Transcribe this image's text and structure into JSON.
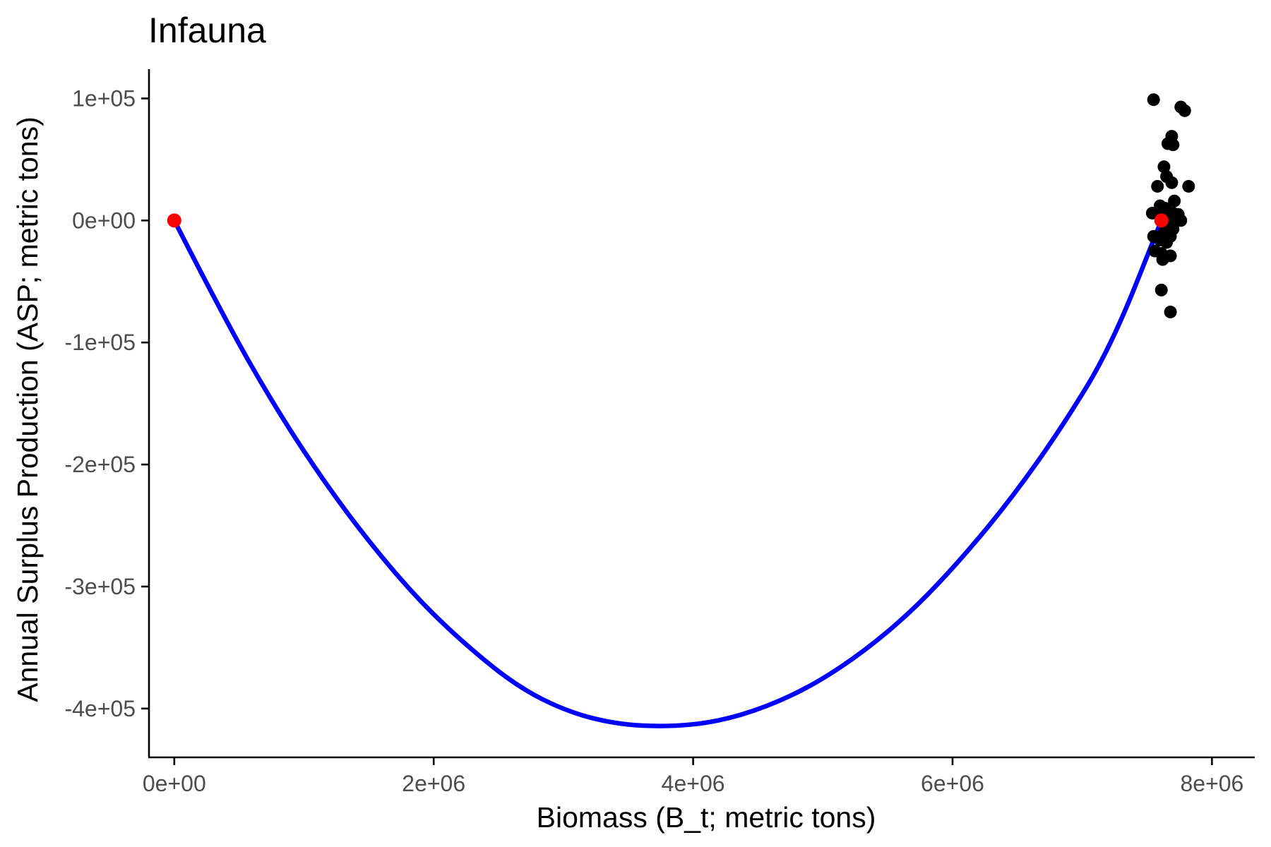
{
  "chart_data": {
    "type": "scatter",
    "title": "Infauna",
    "xlabel": "Biomass (B_t; metric tons)",
    "ylabel": "Annual Surplus Production (ASP; metric tons)",
    "xlim": [
      -195000,
      8330000
    ],
    "ylim": [
      -440000,
      124000
    ],
    "x_ticks": [
      0,
      2000000,
      4000000,
      6000000,
      8000000
    ],
    "x_tick_labels": [
      "0e+00",
      "2e+06",
      "4e+06",
      "6e+06",
      "8e+06"
    ],
    "y_ticks": [
      100000,
      0,
      -100000,
      -200000,
      -300000,
      -400000
    ],
    "y_tick_labels": [
      "1e+05",
      "0e+00",
      "-1e+05",
      "-2e+05",
      "-3e+05",
      "-4e+05"
    ],
    "grid": false,
    "legend": "none",
    "colors": {
      "observed": "#000000",
      "curve": "#0000ff",
      "reference": "#ff0000"
    },
    "series": [
      {
        "kind": "line",
        "color": "#0000ff",
        "points": [
          [
            0,
            0
          ],
          [
            380000,
            -79000
          ],
          [
            760000,
            -150000
          ],
          [
            1140000,
            -212000
          ],
          [
            1520000,
            -266000
          ],
          [
            1900000,
            -313000
          ],
          [
            2280000,
            -351000
          ],
          [
            2660000,
            -383000
          ],
          [
            3040000,
            -403000
          ],
          [
            3420000,
            -413000
          ],
          [
            3805000,
            -415000
          ],
          [
            4180000,
            -411000
          ],
          [
            4560000,
            -399000
          ],
          [
            4940000,
            -380000
          ],
          [
            5320000,
            -353000
          ],
          [
            5700000,
            -319000
          ],
          [
            6080000,
            -276000
          ],
          [
            6460000,
            -227000
          ],
          [
            6840000,
            -170000
          ],
          [
            7220000,
            -104000
          ],
          [
            7610000,
            0
          ]
        ]
      },
      {
        "kind": "points",
        "color": "#000000",
        "points": [
          [
            7550000,
            99000
          ],
          [
            7760000,
            93000
          ],
          [
            7790000,
            90000
          ],
          [
            7690000,
            69000
          ],
          [
            7660000,
            63000
          ],
          [
            7700000,
            62000
          ],
          [
            7630000,
            44000
          ],
          [
            7650000,
            36000
          ],
          [
            7690000,
            31000
          ],
          [
            7820000,
            28000
          ],
          [
            7580000,
            28000
          ],
          [
            7710000,
            16000
          ],
          [
            7600000,
            12000
          ],
          [
            7640000,
            10000
          ],
          [
            7540000,
            6000
          ],
          [
            7700000,
            6000
          ],
          [
            7740000,
            5000
          ],
          [
            7620000,
            3000
          ],
          [
            7680000,
            2000
          ],
          [
            7760000,
            0
          ],
          [
            7650000,
            -3000
          ],
          [
            7700000,
            -7000
          ],
          [
            7630000,
            -10000
          ],
          [
            7550000,
            -13000
          ],
          [
            7680000,
            -13000
          ],
          [
            7600000,
            -16000
          ],
          [
            7650000,
            -18000
          ],
          [
            7560000,
            -25000
          ],
          [
            7610000,
            -27000
          ],
          [
            7680000,
            -29000
          ],
          [
            7620000,
            -32000
          ],
          [
            7610000,
            -57000
          ],
          [
            7680000,
            -75000
          ]
        ]
      },
      {
        "kind": "points",
        "color": "#ff0000",
        "points": [
          [
            0,
            0
          ],
          [
            7610000,
            0
          ]
        ]
      }
    ]
  }
}
